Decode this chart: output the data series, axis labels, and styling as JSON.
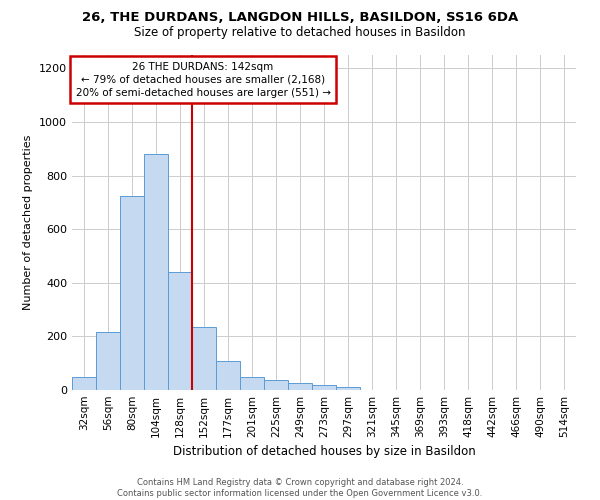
{
  "title1": "26, THE DURDANS, LANGDON HILLS, BASILDON, SS16 6DA",
  "title2": "Size of property relative to detached houses in Basildon",
  "xlabel": "Distribution of detached houses by size in Basildon",
  "ylabel": "Number of detached properties",
  "categories": [
    "32sqm",
    "56sqm",
    "80sqm",
    "104sqm",
    "128sqm",
    "152sqm",
    "177sqm",
    "201sqm",
    "225sqm",
    "249sqm",
    "273sqm",
    "297sqm",
    "321sqm",
    "345sqm",
    "369sqm",
    "393sqm",
    "418sqm",
    "442sqm",
    "466sqm",
    "490sqm",
    "514sqm"
  ],
  "values": [
    50,
    215,
    725,
    880,
    440,
    235,
    110,
    48,
    38,
    25,
    18,
    10,
    0,
    0,
    0,
    0,
    0,
    0,
    0,
    0,
    0
  ],
  "bar_color": "#c5d9f1",
  "bar_edge_color": "#5b9bd5",
  "vline_color": "#cc0000",
  "vline_x": 4.5,
  "annotation_text": "26 THE DURDANS: 142sqm\n← 79% of detached houses are smaller (2,168)\n20% of semi-detached houses are larger (551) →",
  "annotation_box_edge_color": "#cc0000",
  "ylim": [
    0,
    1250
  ],
  "yticks": [
    0,
    200,
    400,
    600,
    800,
    1000,
    1200
  ],
  "footnote": "Contains HM Land Registry data © Crown copyright and database right 2024.\nContains public sector information licensed under the Open Government Licence v3.0.",
  "background_color": "#ffffff",
  "grid_color": "#cccccc"
}
